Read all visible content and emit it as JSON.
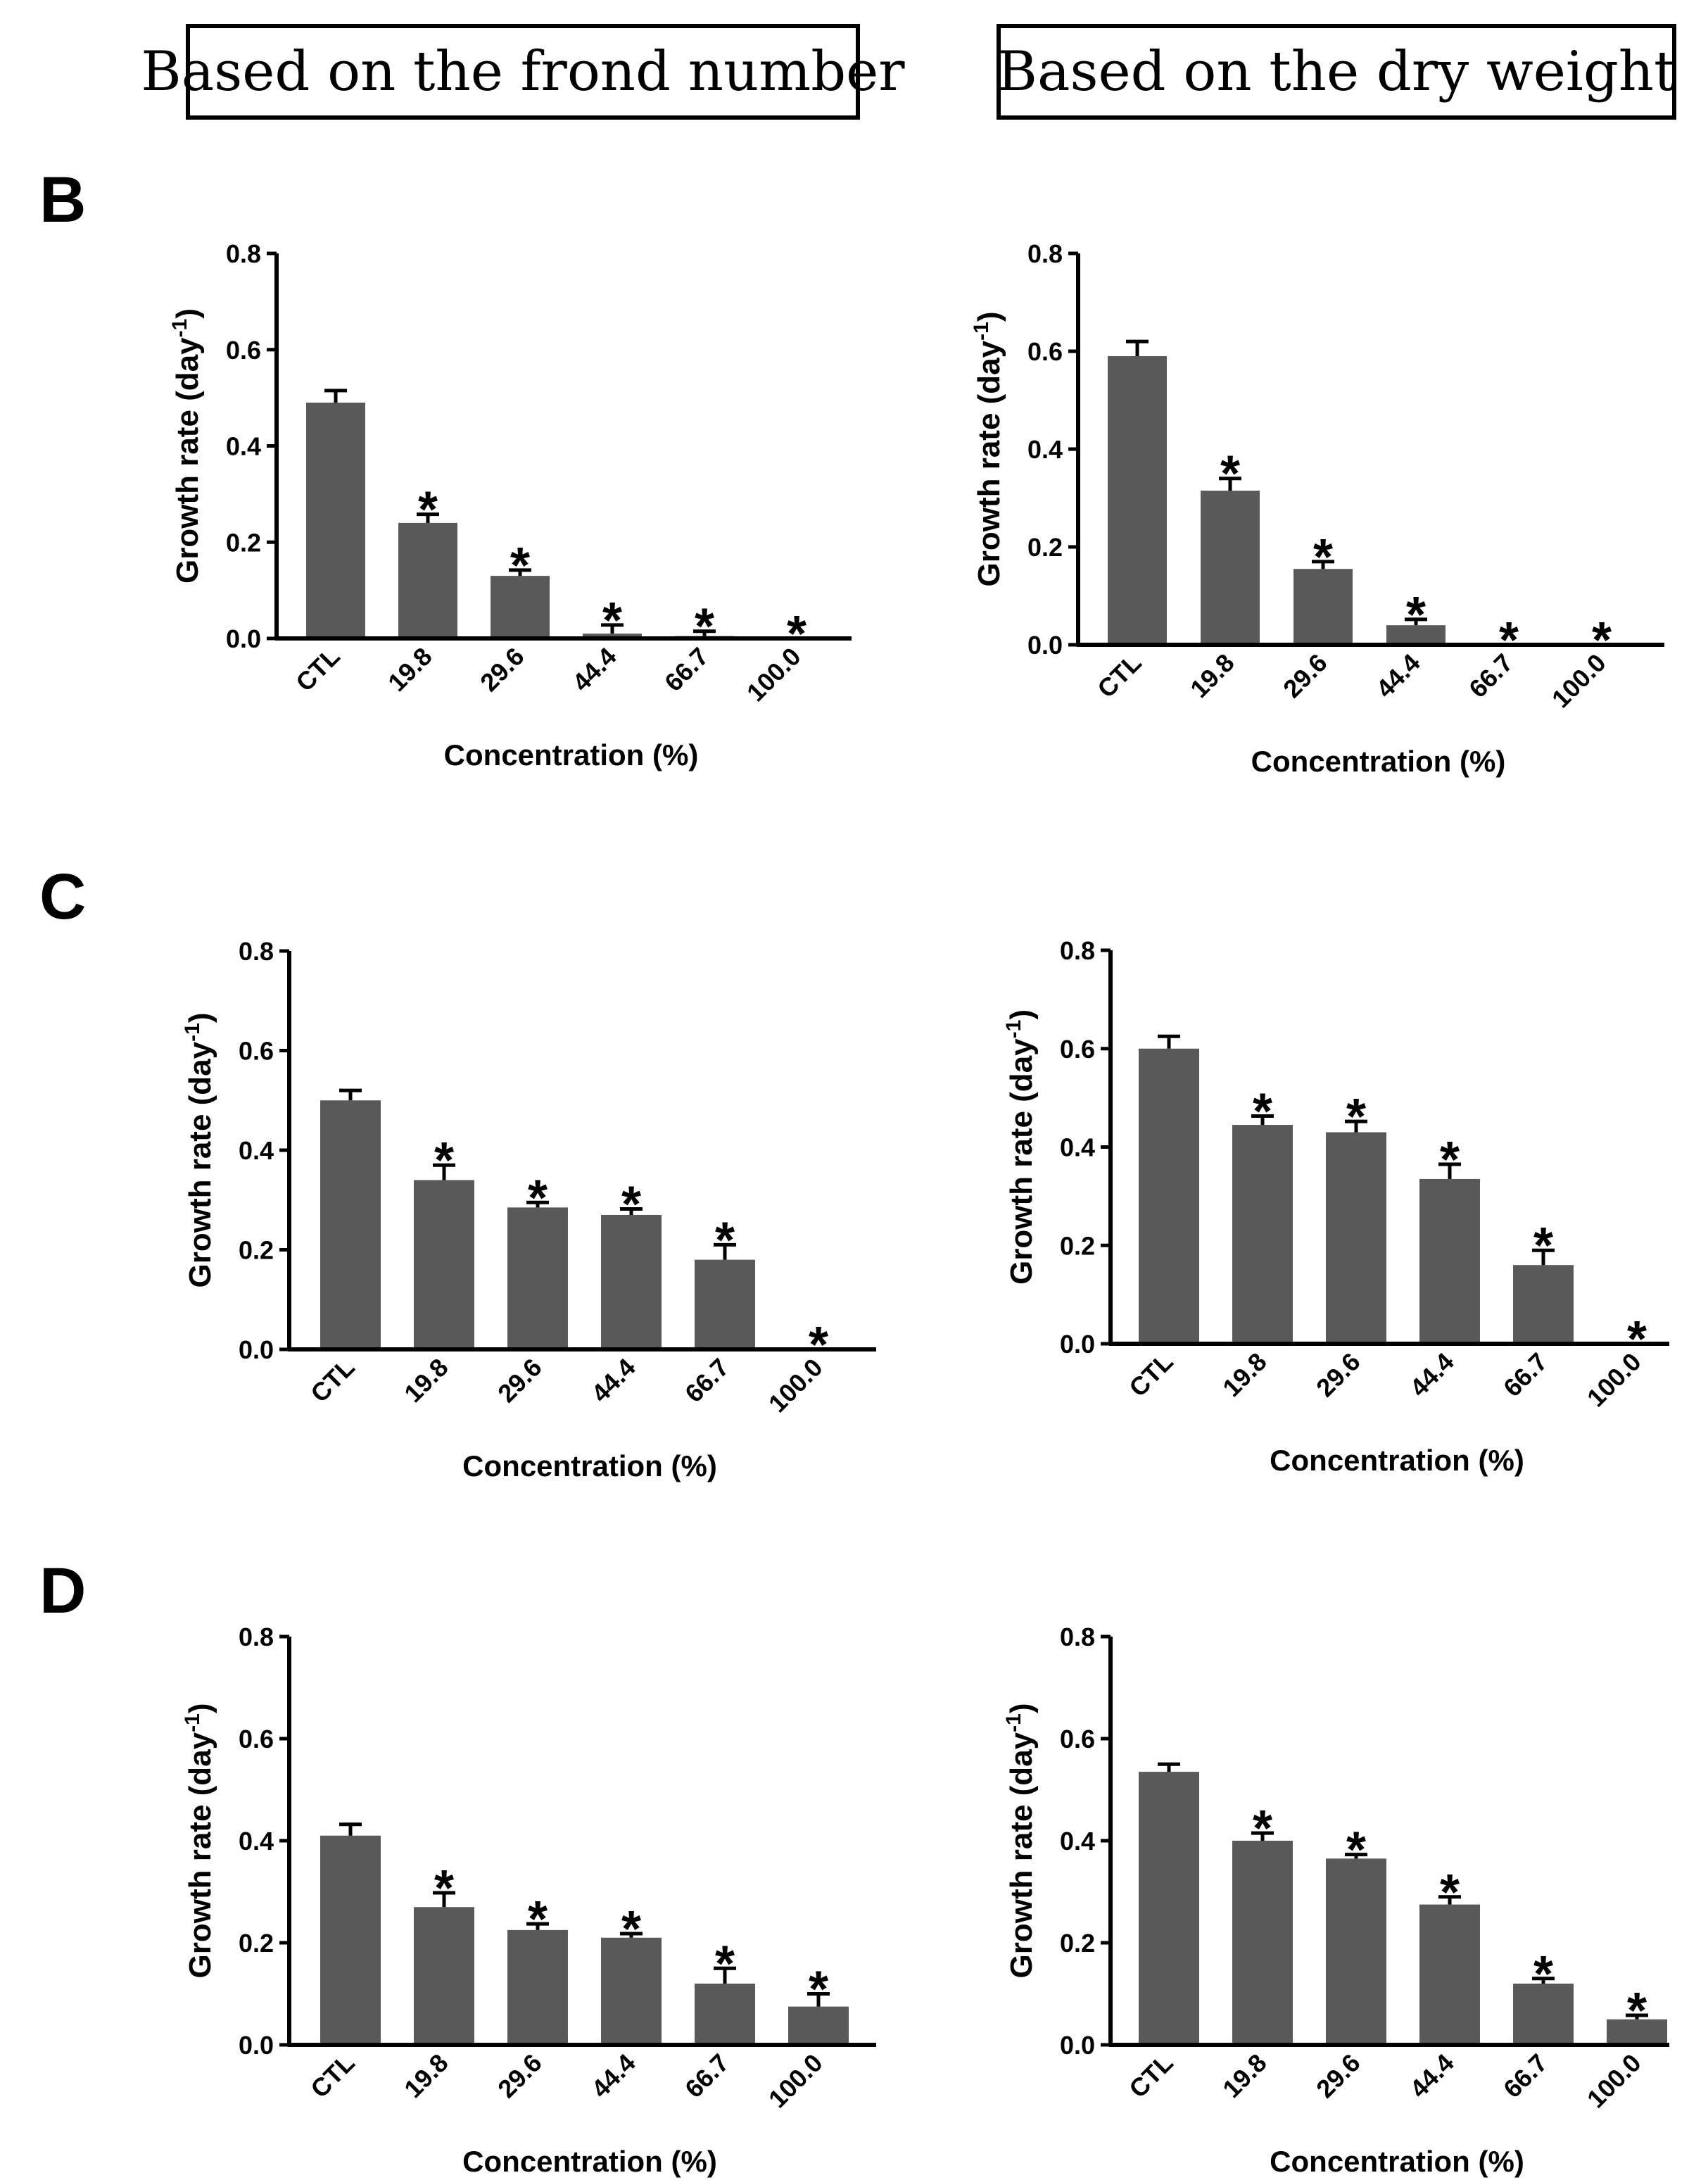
{
  "headers": {
    "left": "Based on the frond number",
    "right": "Based on the dry weight"
  },
  "panels": [
    {
      "letter": "B"
    },
    {
      "letter": "C"
    },
    {
      "letter": "D"
    }
  ],
  "colors": {
    "bar": "#595959",
    "axis": "#000000"
  },
  "chart_data": [
    {
      "id": "B-left",
      "type": "bar",
      "panel": "B",
      "basis": "Based on the frond number",
      "categories": [
        "CTL",
        "19.8",
        "29.6",
        "44.4",
        "66.7",
        "100.0"
      ],
      "values": [
        0.49,
        0.24,
        0.13,
        0.01,
        0.005,
        0.0
      ],
      "errors": [
        0.025,
        0.018,
        0.012,
        0.018,
        0.01,
        0.0
      ],
      "significant": [
        false,
        true,
        true,
        true,
        true,
        true
      ],
      "sig_marker": "*",
      "xlabel": "Concentration (%)",
      "ylabel": "Growth rate (day",
      "ylabel_sup": "-1",
      "ylabel_close": ")",
      "ylim": [
        0,
        0.8
      ],
      "yticks": [
        "0.0",
        "0.2",
        "0.4",
        "0.6",
        "0.8"
      ],
      "grid": false
    },
    {
      "id": "B-right",
      "type": "bar",
      "panel": "B",
      "basis": "Based on the dry weight",
      "categories": [
        "CTL",
        "19.8",
        "29.6",
        "44.4",
        "66.7",
        "100.0"
      ],
      "values": [
        0.59,
        0.315,
        0.155,
        0.04,
        0.0,
        0.0
      ],
      "errors": [
        0.03,
        0.025,
        0.015,
        0.012,
        0.0,
        0.0
      ],
      "significant": [
        false,
        true,
        true,
        true,
        true,
        true
      ],
      "sig_marker": "*",
      "xlabel": "Concentration (%)",
      "ylabel": "Growth rate (day",
      "ylabel_sup": "-1",
      "ylabel_close": ")",
      "ylim": [
        0,
        0.8
      ],
      "yticks": [
        "0.0",
        "0.2",
        "0.4",
        "0.6",
        "0.8"
      ],
      "grid": false
    },
    {
      "id": "C-left",
      "type": "bar",
      "panel": "C",
      "basis": "Based on the frond number",
      "categories": [
        "CTL",
        "19.8",
        "29.6",
        "44.4",
        "66.7",
        "100.0"
      ],
      "values": [
        0.5,
        0.34,
        0.285,
        0.27,
        0.18,
        0.0
      ],
      "errors": [
        0.02,
        0.03,
        0.01,
        0.012,
        0.03,
        0.0
      ],
      "significant": [
        false,
        true,
        true,
        true,
        true,
        true
      ],
      "sig_marker": "*",
      "xlabel": "Concentration (%)",
      "ylabel": "Growth rate (day",
      "ylabel_sup": "-1",
      "ylabel_close": ")",
      "ylim": [
        0,
        0.8
      ],
      "yticks": [
        "0.0",
        "0.2",
        "0.4",
        "0.6",
        "0.8"
      ],
      "grid": false
    },
    {
      "id": "C-right",
      "type": "bar",
      "panel": "C",
      "basis": "Based on the dry weight",
      "categories": [
        "CTL",
        "19.8",
        "29.6",
        "44.4",
        "66.7",
        "100.0"
      ],
      "values": [
        0.6,
        0.445,
        0.43,
        0.335,
        0.16,
        0.0
      ],
      "errors": [
        0.025,
        0.018,
        0.022,
        0.03,
        0.03,
        0.0
      ],
      "significant": [
        false,
        true,
        true,
        true,
        true,
        true
      ],
      "sig_marker": "*",
      "xlabel": "Concentration (%)",
      "ylabel": "Growth rate (day",
      "ylabel_sup": "-1",
      "ylabel_close": ")",
      "ylim": [
        0,
        0.8
      ],
      "yticks": [
        "0.0",
        "0.2",
        "0.4",
        "0.6",
        "0.8"
      ],
      "grid": false
    },
    {
      "id": "D-left",
      "type": "bar",
      "panel": "D",
      "basis": "Based on the frond number",
      "categories": [
        "CTL",
        "19.8",
        "29.6",
        "44.4",
        "66.7",
        "100.0"
      ],
      "values": [
        0.41,
        0.27,
        0.225,
        0.21,
        0.12,
        0.075
      ],
      "errors": [
        0.022,
        0.028,
        0.012,
        0.008,
        0.03,
        0.025
      ],
      "significant": [
        false,
        true,
        true,
        true,
        true,
        true
      ],
      "sig_marker": "*",
      "xlabel": "Concentration (%)",
      "ylabel": "Growth rate (day",
      "ylabel_sup": "-1",
      "ylabel_close": ")",
      "ylim": [
        0,
        0.8
      ],
      "yticks": [
        "0.0",
        "0.2",
        "0.4",
        "0.6",
        "0.8"
      ],
      "grid": false
    },
    {
      "id": "D-right",
      "type": "bar",
      "panel": "D",
      "basis": "Based on the dry weight",
      "categories": [
        "CTL",
        "19.8",
        "29.6",
        "44.4",
        "66.7",
        "100.0"
      ],
      "values": [
        0.535,
        0.4,
        0.365,
        0.275,
        0.12,
        0.05
      ],
      "errors": [
        0.015,
        0.015,
        0.008,
        0.015,
        0.01,
        0.008
      ],
      "significant": [
        false,
        true,
        true,
        true,
        true,
        true
      ],
      "sig_marker": "*",
      "xlabel": "Concentration (%)",
      "ylabel": "Growth rate (day",
      "ylabel_sup": "-1",
      "ylabel_close": ")",
      "ylim": [
        0,
        0.8
      ],
      "yticks": [
        "0.0",
        "0.2",
        "0.4",
        "0.6",
        "0.8"
      ],
      "grid": false
    }
  ]
}
